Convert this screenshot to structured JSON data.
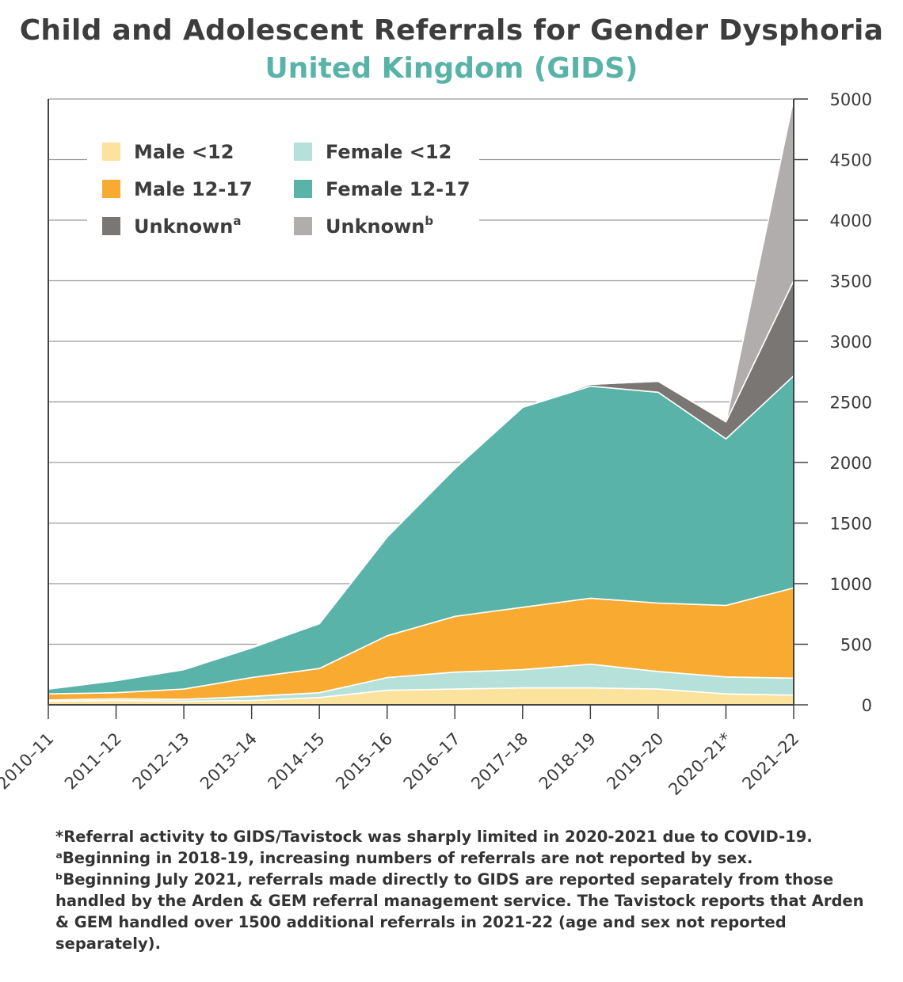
{
  "colors": {
    "male_under12": "#fbe29d",
    "female_under12": "#b6e1da",
    "male_12_17": "#f9aa31",
    "female_12_17": "#5ab3a8",
    "unknown_a": "#7a7674",
    "unknown_b": "#b1adac",
    "grid": "#9a9a9a",
    "axis": "#444444"
  },
  "chart_data": {
    "type": "area",
    "stacked": true,
    "title": "Child and Adolescent Referrals for Gender Dysphoria",
    "subtitle": "United Kingdom (GIDS)",
    "categories": [
      "2010–11",
      "2011–12",
      "2012–13",
      "2013–14",
      "2014–15",
      "2015–16",
      "2016–17",
      "2017–18",
      "2018–19",
      "2019–20",
      "2020–21*",
      "2021–22"
    ],
    "series": [
      {
        "key": "male_under12",
        "name": "Male <12",
        "values": [
          30,
          35,
          30,
          35,
          60,
          120,
          130,
          140,
          140,
          130,
          90,
          80
        ]
      },
      {
        "key": "female_under12",
        "name": "Female <12",
        "values": [
          10,
          15,
          15,
          35,
          40,
          105,
          140,
          150,
          195,
          145,
          140,
          140
        ]
      },
      {
        "key": "male_12_17",
        "name": "Male 12-17",
        "values": [
          50,
          50,
          85,
          155,
          200,
          345,
          460,
          515,
          545,
          565,
          590,
          745
        ]
      },
      {
        "key": "female_12_17",
        "name": "Female 12-17",
        "values": [
          40,
          100,
          160,
          245,
          370,
          815,
          1220,
          1650,
          1750,
          1740,
          1375,
          1750
        ]
      },
      {
        "key": "unknown_a",
        "name": "Unknown",
        "superscript": "a",
        "values": [
          0,
          0,
          10,
          10,
          0,
          0,
          0,
          0,
          15,
          90,
          140,
          785
        ]
      },
      {
        "key": "unknown_b",
        "name": "Unknown",
        "superscript": "b",
        "values": [
          0,
          0,
          0,
          0,
          0,
          0,
          0,
          0,
          0,
          0,
          0,
          1500
        ]
      }
    ],
    "ylim": [
      0,
      5000
    ],
    "yticks": [
      "0",
      "500",
      "1000",
      "1500",
      "2000",
      "2500",
      "3000",
      "3500",
      "4000",
      "4500",
      "5000"
    ],
    "y_axis_side": "right",
    "grid": true,
    "legend_position": "top-left"
  },
  "footnotes": [
    "*Referral activity to GIDS/Tavistock was sharply limited in 2020-2021 due to COVID-19.",
    "ᵃBeginning in 2018-19, increasing numbers of referrals are not reported by sex.",
    "ᵇBeginning July 2021, referrals made directly to GIDS are reported separately from those handled by the Arden & GEM referral management service. The Tavistock reports that Arden & GEM handled over 1500 additional referrals in 2021-22 (age and sex not reported separately)."
  ]
}
